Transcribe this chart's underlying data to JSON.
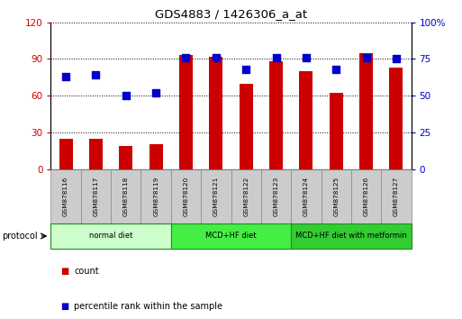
{
  "title": "GDS4883 / 1426306_a_at",
  "samples": [
    "GSM878116",
    "GSM878117",
    "GSM878118",
    "GSM878119",
    "GSM878120",
    "GSM878121",
    "GSM878122",
    "GSM878123",
    "GSM878124",
    "GSM878125",
    "GSM878126",
    "GSM878127"
  ],
  "counts": [
    25,
    25,
    19,
    20,
    93,
    92,
    70,
    88,
    80,
    62,
    95,
    83
  ],
  "percentile_ranks": [
    63,
    64,
    50,
    52,
    76,
    76,
    68,
    76,
    76,
    68,
    76,
    75
  ],
  "bar_color": "#cc0000",
  "dot_color": "#0000cc",
  "ylim_left": [
    0,
    120
  ],
  "ylim_right": [
    0,
    100
  ],
  "yticks_left": [
    0,
    30,
    60,
    90,
    120
  ],
  "ytick_labels_left": [
    "0",
    "30",
    "60",
    "90",
    "120"
  ],
  "yticks_right": [
    0,
    25,
    50,
    75,
    100
  ],
  "ytick_labels_right": [
    "0",
    "25",
    "50",
    "75",
    "100%"
  ],
  "groups": [
    {
      "label": "normal diet",
      "start": 0,
      "end": 4,
      "color": "#ccffcc"
    },
    {
      "label": "MCD+HF diet",
      "start": 4,
      "end": 8,
      "color": "#44ee44"
    },
    {
      "label": "MCD+HF diet with metformin",
      "start": 8,
      "end": 12,
      "color": "#33cc33"
    }
  ],
  "protocol_label": "protocol",
  "legend_count_label": "count",
  "legend_pct_label": "percentile rank within the sample",
  "bg_color": "#ffffff",
  "plot_bg_color": "#ffffff",
  "tick_label_color_left": "#cc0000",
  "tick_label_color_right": "#0000cc",
  "bar_width": 0.45,
  "dot_size": 28,
  "sample_box_color": "#cccccc",
  "sample_box_edge": "#888888",
  "group_edge_color": "#228B22"
}
